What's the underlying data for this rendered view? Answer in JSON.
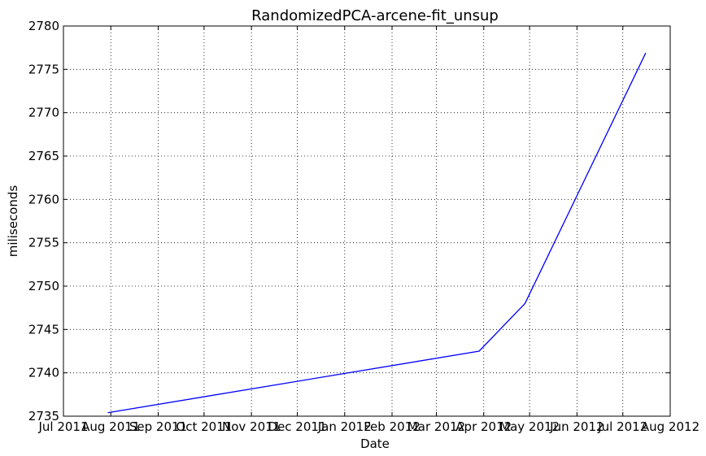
{
  "chart_data": {
    "type": "line",
    "title": "RandomizedPCA-arcene-fit_unsup",
    "xlabel": "Date",
    "ylabel": "miliseconds",
    "x_ticks": [
      "Jul 2011",
      "Aug 2011",
      "Sep 2011",
      "Oct 2011",
      "Nov 2011",
      "Dec 2011",
      "Jan 2012",
      "Feb 2012",
      "Mar 2012",
      "Apr 2012",
      "May 2012",
      "Jun 2012",
      "Jul 2012",
      "Aug 2012"
    ],
    "y_ticks": [
      2735,
      2740,
      2745,
      2750,
      2755,
      2760,
      2765,
      2770,
      2775,
      2780
    ],
    "ylim": [
      2735,
      2780
    ],
    "xlim": [
      "2011-07-01",
      "2012-08-01"
    ],
    "grid": true,
    "series": [
      {
        "color": "#0000ff",
        "x": [
          "2011-07-30",
          "2012-03-29",
          "2012-04-28",
          "2012-07-16"
        ],
        "y": [
          2735.4,
          2742.5,
          2748.0,
          2776.9
        ]
      }
    ]
  }
}
